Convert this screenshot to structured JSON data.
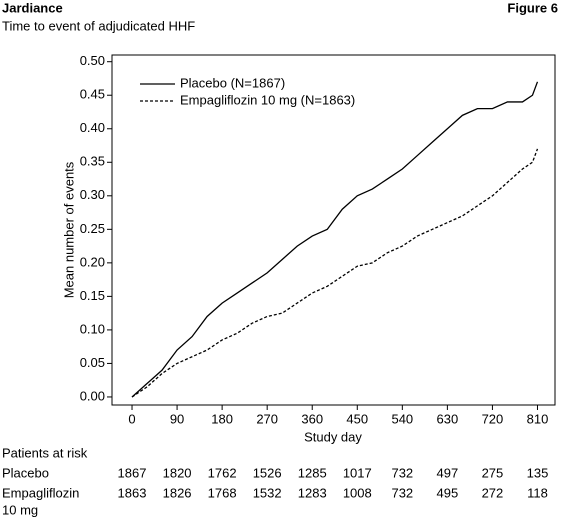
{
  "header": {
    "title": "Jardiance",
    "figure": "Figure 6",
    "subtitle": "Time to event of adjudicated HHF"
  },
  "chart_data": {
    "type": "line",
    "ylabel": "Mean number of events",
    "xlabel": "Study day",
    "x": [
      0,
      30,
      60,
      90,
      120,
      150,
      180,
      210,
      240,
      270,
      300,
      330,
      360,
      390,
      420,
      450,
      480,
      510,
      540,
      570,
      600,
      630,
      660,
      690,
      720,
      750,
      780,
      800,
      810
    ],
    "series": [
      {
        "name": "Placebo (N=1867)",
        "color": "#000000",
        "line_style": "solid",
        "values": [
          0,
          0.02,
          0.04,
          0.07,
          0.09,
          0.12,
          0.14,
          0.155,
          0.17,
          0.185,
          0.205,
          0.225,
          0.24,
          0.25,
          0.28,
          0.3,
          0.31,
          0.325,
          0.34,
          0.36,
          0.38,
          0.4,
          0.42,
          0.43,
          0.43,
          0.44,
          0.44,
          0.45,
          0.47
        ]
      },
      {
        "name": "Empagliflozin 10 mg (N=1863)",
        "color": "#000000",
        "line_style": "dashed",
        "values": [
          0,
          0.015,
          0.035,
          0.05,
          0.06,
          0.07,
          0.085,
          0.095,
          0.11,
          0.12,
          0.125,
          0.14,
          0.155,
          0.165,
          0.18,
          0.195,
          0.2,
          0.215,
          0.225,
          0.24,
          0.25,
          0.26,
          0.27,
          0.285,
          0.3,
          0.32,
          0.34,
          0.35,
          0.37
        ]
      }
    ],
    "xlim": [
      -40,
      845
    ],
    "xticks": [
      0,
      90,
      180,
      270,
      360,
      450,
      540,
      630,
      720,
      810
    ],
    "ylim": [
      -0.012,
      0.51
    ],
    "yticks": [
      {
        "value": 0,
        "label": "0.00"
      },
      {
        "value": 0.05,
        "label": "0.05"
      },
      {
        "value": 0.1,
        "label": "0.10"
      },
      {
        "value": 0.15,
        "label": "0.15"
      },
      {
        "value": 0.2,
        "label": "0.20"
      },
      {
        "value": 0.25,
        "label": "0.25"
      },
      {
        "value": 0.3,
        "label": "0.30"
      },
      {
        "value": 0.35,
        "label": "0.35"
      },
      {
        "value": 0.4,
        "label": "0.40"
      },
      {
        "value": 0.45,
        "label": "0.45"
      },
      {
        "value": 0.5,
        "label": "0.50"
      }
    ],
    "legend": "upper left",
    "risk_table": {
      "title": "Patients at risk",
      "rows": [
        {
          "label_lines": [
            "Placebo"
          ],
          "values": [
            1867,
            1820,
            1762,
            1526,
            1285,
            1017,
            732,
            497,
            275,
            135
          ]
        },
        {
          "label_lines": [
            "Empagliflozin",
            "10 mg"
          ],
          "values": [
            1863,
            1826,
            1768,
            1532,
            1283,
            1008,
            732,
            495,
            272,
            118
          ]
        }
      ]
    }
  }
}
